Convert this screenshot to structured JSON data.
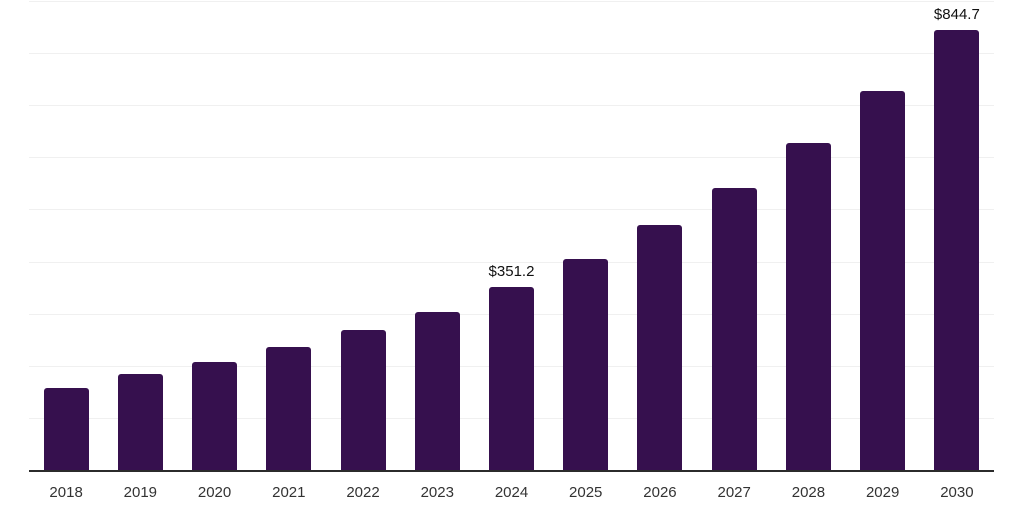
{
  "chart_data": {
    "type": "bar",
    "categories": [
      "2018",
      "2019",
      "2020",
      "2021",
      "2022",
      "2023",
      "2024",
      "2025",
      "2026",
      "2027",
      "2028",
      "2029",
      "2030"
    ],
    "values": [
      158,
      184,
      208,
      236,
      269,
      303,
      351.2,
      405,
      470,
      541,
      628,
      728,
      844.7
    ],
    "data_labels": {
      "2024": "$351.2",
      "2030": "$844.7"
    },
    "title": "",
    "xlabel": "",
    "ylabel": "",
    "ylim": [
      0,
      900
    ],
    "grid": true,
    "gridline_step": 100,
    "legend": "none",
    "colors": {
      "bar": "#36104E",
      "axis_line": "#2b2b2b",
      "gridline": "#f0f0f0",
      "tick_label": "#333333",
      "value_label": "#111111",
      "background": "#ffffff"
    }
  }
}
